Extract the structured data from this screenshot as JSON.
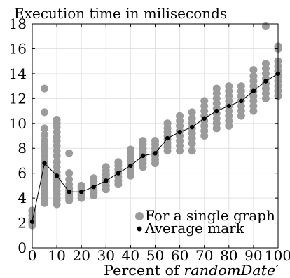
{
  "chart_data": {
    "type": "scatter",
    "title": "Execution time in miliseconds",
    "xlabel": {
      "text": "Percent of ",
      "emphasis": "randomDate′"
    },
    "ylabel": "",
    "xlim": [
      0,
      100
    ],
    "ylim": [
      0,
      18
    ],
    "x_ticks": [
      0,
      10,
      20,
      30,
      40,
      50,
      60,
      70,
      80,
      90,
      100
    ],
    "y_ticks": [
      0,
      2,
      4,
      6,
      8,
      10,
      12,
      14,
      16,
      18
    ],
    "grid": true,
    "legend_position": "bottom-right",
    "colors": {
      "single": "#9b9b9b",
      "average": "#000000"
    },
    "series": [
      {
        "name": "For a single graph",
        "marker": "circle",
        "points": [
          [
            0,
            1.8
          ],
          [
            0,
            2.0
          ],
          [
            0,
            2.1
          ],
          [
            0,
            2.3
          ],
          [
            0,
            2.6
          ],
          [
            0,
            2.9
          ],
          [
            0,
            3.0
          ],
          [
            5,
            3.6
          ],
          [
            5,
            3.8
          ],
          [
            5,
            4.0
          ],
          [
            5,
            4.2
          ],
          [
            5,
            4.4
          ],
          [
            5,
            4.6
          ],
          [
            5,
            4.9
          ],
          [
            5,
            5.2
          ],
          [
            5,
            5.5
          ],
          [
            5,
            5.8
          ],
          [
            5,
            6.1
          ],
          [
            5,
            6.4
          ],
          [
            5,
            6.7
          ],
          [
            5,
            7.0
          ],
          [
            5,
            7.4
          ],
          [
            5,
            7.8
          ],
          [
            5,
            8.2
          ],
          [
            5,
            8.6
          ],
          [
            5,
            9.1
          ],
          [
            5,
            9.6
          ],
          [
            5,
            10.9
          ],
          [
            5,
            12.8
          ],
          [
            10,
            3.5
          ],
          [
            10,
            3.8
          ],
          [
            10,
            4.0
          ],
          [
            10,
            4.3
          ],
          [
            10,
            4.6
          ],
          [
            10,
            4.9
          ],
          [
            10,
            5.2
          ],
          [
            10,
            5.5
          ],
          [
            10,
            5.8
          ],
          [
            10,
            6.1
          ],
          [
            10,
            6.5
          ],
          [
            10,
            6.9
          ],
          [
            10,
            7.4
          ],
          [
            10,
            7.8
          ],
          [
            10,
            8.2
          ],
          [
            10,
            8.6
          ],
          [
            10,
            8.9
          ],
          [
            10,
            9.3
          ],
          [
            10,
            9.7
          ],
          [
            10,
            10.0
          ],
          [
            10,
            10.3
          ],
          [
            15,
            3.8
          ],
          [
            15,
            4.0
          ],
          [
            15,
            4.2
          ],
          [
            15,
            4.4
          ],
          [
            15,
            4.6
          ],
          [
            15,
            4.8
          ],
          [
            15,
            5.1
          ],
          [
            15,
            5.5
          ],
          [
            15,
            6.0
          ],
          [
            15,
            7.6
          ],
          [
            20,
            4.0
          ],
          [
            20,
            4.2
          ],
          [
            20,
            4.4
          ],
          [
            20,
            4.6
          ],
          [
            20,
            4.8
          ],
          [
            20,
            5.0
          ],
          [
            25,
            4.2
          ],
          [
            25,
            4.4
          ],
          [
            25,
            4.6
          ],
          [
            25,
            4.8
          ],
          [
            25,
            5.0
          ],
          [
            25,
            5.3
          ],
          [
            25,
            5.6
          ],
          [
            30,
            4.7
          ],
          [
            30,
            5.0
          ],
          [
            30,
            5.3
          ],
          [
            30,
            5.6
          ],
          [
            30,
            5.9
          ],
          [
            30,
            6.2
          ],
          [
            30,
            6.5
          ],
          [
            35,
            5.1
          ],
          [
            35,
            5.4
          ],
          [
            35,
            5.7
          ],
          [
            35,
            6.0
          ],
          [
            35,
            6.3
          ],
          [
            35,
            6.6
          ],
          [
            35,
            6.9
          ],
          [
            40,
            5.8
          ],
          [
            40,
            6.1
          ],
          [
            40,
            6.4
          ],
          [
            40,
            6.7
          ],
          [
            40,
            7.0
          ],
          [
            40,
            7.3
          ],
          [
            40,
            7.6
          ],
          [
            40,
            7.9
          ],
          [
            45,
            6.5
          ],
          [
            45,
            6.8
          ],
          [
            45,
            7.1
          ],
          [
            45,
            7.4
          ],
          [
            45,
            7.7
          ],
          [
            45,
            8.0
          ],
          [
            45,
            8.3
          ],
          [
            45,
            8.6
          ],
          [
            50,
            6.8
          ],
          [
            50,
            7.1
          ],
          [
            50,
            7.4
          ],
          [
            50,
            7.7
          ],
          [
            50,
            8.0
          ],
          [
            50,
            8.3
          ],
          [
            50,
            8.6
          ],
          [
            55,
            7.8
          ],
          [
            55,
            8.1
          ],
          [
            55,
            8.4
          ],
          [
            55,
            8.7
          ],
          [
            55,
            9.0
          ],
          [
            55,
            9.3
          ],
          [
            55,
            9.6
          ],
          [
            55,
            10.0
          ],
          [
            60,
            7.8
          ],
          [
            60,
            8.2
          ],
          [
            60,
            8.6
          ],
          [
            60,
            9.0
          ],
          [
            60,
            9.4
          ],
          [
            60,
            9.8
          ],
          [
            60,
            10.2
          ],
          [
            60,
            10.6
          ],
          [
            65,
            7.8
          ],
          [
            65,
            8.4
          ],
          [
            65,
            8.8
          ],
          [
            65,
            9.2
          ],
          [
            65,
            9.6
          ],
          [
            65,
            10.0
          ],
          [
            65,
            10.4
          ],
          [
            65,
            10.9
          ],
          [
            70,
            9.0
          ],
          [
            70,
            9.4
          ],
          [
            70,
            9.8
          ],
          [
            70,
            10.2
          ],
          [
            70,
            10.6
          ],
          [
            70,
            11.0
          ],
          [
            70,
            11.4
          ],
          [
            70,
            11.8
          ],
          [
            75,
            9.6
          ],
          [
            75,
            10.0
          ],
          [
            75,
            10.4
          ],
          [
            75,
            10.8
          ],
          [
            75,
            11.2
          ],
          [
            75,
            11.6
          ],
          [
            75,
            12.0
          ],
          [
            75,
            12.4
          ],
          [
            75,
            12.8
          ],
          [
            80,
            9.8
          ],
          [
            80,
            10.2
          ],
          [
            80,
            10.6
          ],
          [
            80,
            11.0
          ],
          [
            80,
            11.4
          ],
          [
            80,
            11.8
          ],
          [
            80,
            12.2
          ],
          [
            80,
            12.6
          ],
          [
            80,
            13.0
          ],
          [
            85,
            10.6
          ],
          [
            85,
            11.0
          ],
          [
            85,
            11.4
          ],
          [
            85,
            11.8
          ],
          [
            85,
            12.2
          ],
          [
            85,
            12.6
          ],
          [
            85,
            13.0
          ],
          [
            90,
            11.0
          ],
          [
            90,
            11.4
          ],
          [
            90,
            11.8
          ],
          [
            90,
            12.2
          ],
          [
            90,
            12.6
          ],
          [
            90,
            13.0
          ],
          [
            90,
            13.4
          ],
          [
            90,
            13.8
          ],
          [
            90,
            14.3
          ],
          [
            95,
            12.0
          ],
          [
            95,
            12.4
          ],
          [
            95,
            12.8
          ],
          [
            95,
            13.2
          ],
          [
            95,
            13.6
          ],
          [
            95,
            14.0
          ],
          [
            95,
            14.4
          ],
          [
            95,
            14.8
          ],
          [
            95,
            17.8
          ],
          [
            100,
            12.2
          ],
          [
            100,
            12.6
          ],
          [
            100,
            13.0
          ],
          [
            100,
            13.4
          ],
          [
            100,
            13.8
          ],
          [
            100,
            14.2
          ],
          [
            100,
            14.6
          ],
          [
            100,
            15.0
          ],
          [
            100,
            16.0
          ],
          [
            100,
            16.2
          ]
        ]
      },
      {
        "name": "Average mark",
        "marker": "circle",
        "line": true,
        "points": [
          [
            0,
            2.1
          ],
          [
            5,
            6.8
          ],
          [
            10,
            5.8
          ],
          [
            15,
            4.5
          ],
          [
            20,
            4.5
          ],
          [
            25,
            4.9
          ],
          [
            30,
            5.4
          ],
          [
            35,
            6.0
          ],
          [
            40,
            6.6
          ],
          [
            45,
            7.4
          ],
          [
            50,
            7.6
          ],
          [
            55,
            8.8
          ],
          [
            60,
            9.3
          ],
          [
            65,
            9.7
          ],
          [
            70,
            10.4
          ],
          [
            75,
            11.0
          ],
          [
            80,
            11.4
          ],
          [
            85,
            11.8
          ],
          [
            90,
            12.6
          ],
          [
            95,
            13.4
          ],
          [
            100,
            14.0
          ]
        ]
      }
    ]
  }
}
